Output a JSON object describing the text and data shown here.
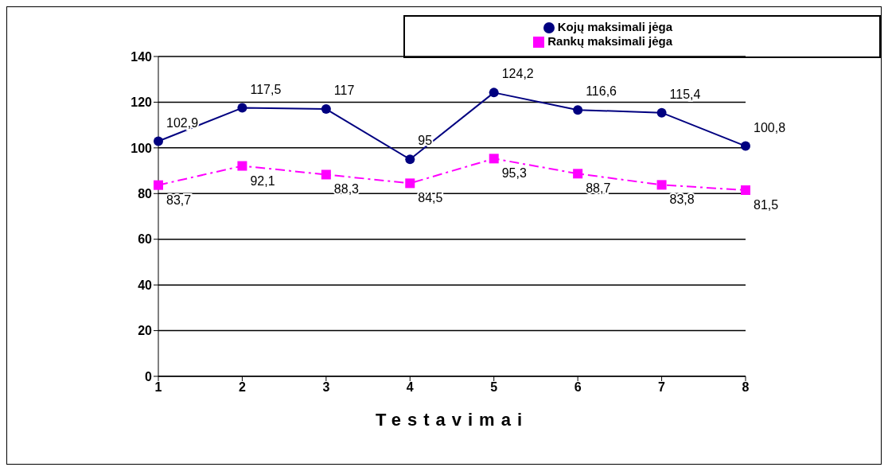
{
  "chart_data": {
    "type": "line",
    "xlabel": "Testavimai",
    "categories": [
      "1",
      "2",
      "3",
      "4",
      "5",
      "6",
      "7",
      "8"
    ],
    "series": [
      {
        "name": "Kojų maksimali jėga",
        "color": "#000080",
        "marker": "circle",
        "line_style": "solid",
        "values": [
          102.9,
          117.5,
          117,
          95,
          124.2,
          116.6,
          115.4,
          100.8
        ],
        "value_labels": [
          "102,9",
          "117,5",
          "117",
          "95",
          "124,2",
          "116,6",
          "115,4",
          "100,8"
        ]
      },
      {
        "name": "Rankų maksimali jėga",
        "color": "#ff00ff",
        "marker": "square",
        "line_style": "dashed",
        "values": [
          83.7,
          92.1,
          88.3,
          84.5,
          95.3,
          88.7,
          83.8,
          81.5
        ],
        "value_labels": [
          "83,7",
          "92,1",
          "88,3",
          "84,5",
          "95,3",
          "88,7",
          "83,8",
          "81,5"
        ]
      }
    ],
    "ylim": [
      0,
      140
    ],
    "yticks": [
      0,
      20,
      40,
      60,
      80,
      100,
      120,
      140
    ],
    "grid": "y",
    "legend": "top right"
  }
}
